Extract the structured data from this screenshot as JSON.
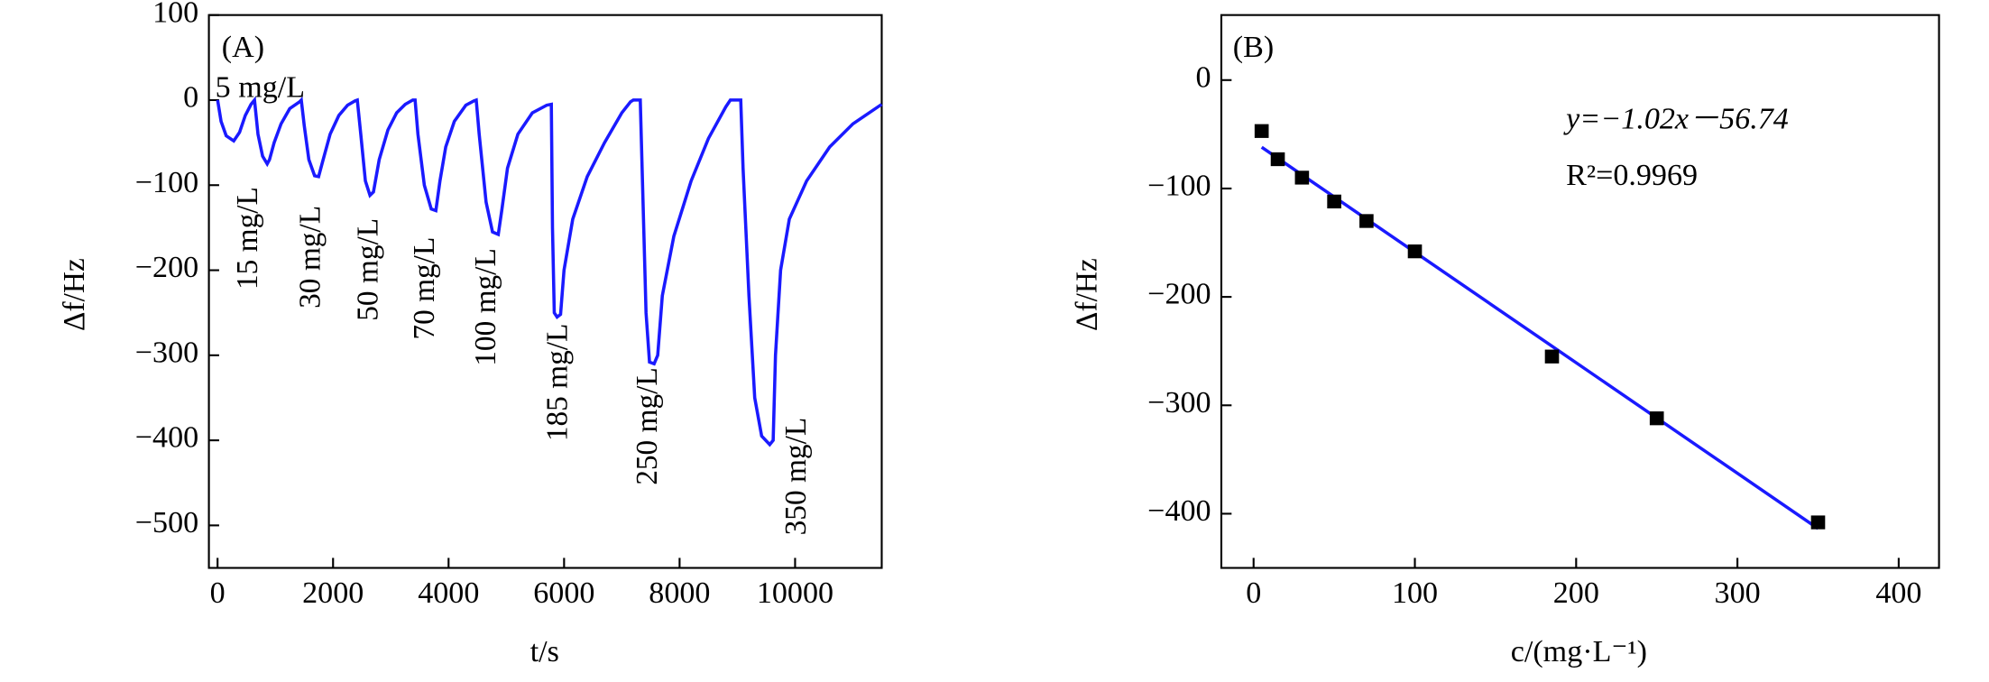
{
  "chart_data": [
    {
      "type": "line",
      "panel": "(A)",
      "xlabel": "t/s",
      "ylabel": "Δf/Hz",
      "xlim": [
        -150,
        11500
      ],
      "ylim": [
        -550,
        100
      ],
      "xticks": [
        0,
        2000,
        4000,
        6000,
        8000,
        10000
      ],
      "yticks": [
        100,
        0,
        {
          "value": -100,
          "label": "−100"
        },
        {
          "value": -200,
          "label": "−200"
        },
        {
          "value": -300,
          "label": "−300"
        },
        {
          "value": -400,
          "label": "−400"
        },
        {
          "value": -500,
          "label": "−500"
        }
      ],
      "annotations": [
        "5 mg/L",
        "15 mg/L",
        "30 mg/L",
        "50 mg/L",
        "70 mg/L",
        "100 mg/L",
        "185 mg/L",
        "250 mg/L",
        "350 mg/L"
      ],
      "x": [
        0,
        60,
        150,
        280,
        380,
        480,
        580,
        640,
        700,
        780,
        860,
        900,
        980,
        1100,
        1250,
        1420,
        1450,
        1500,
        1580,
        1680,
        1750,
        1820,
        1950,
        2100,
        2250,
        2380,
        2420,
        2480,
        2560,
        2640,
        2700,
        2800,
        2950,
        3100,
        3250,
        3380,
        3420,
        3470,
        3580,
        3700,
        3780,
        3850,
        3950,
        4100,
        4300,
        4440,
        4480,
        4530,
        4650,
        4760,
        4860,
        4920,
        5020,
        5200,
        5450,
        5700,
        5780,
        5800,
        5830,
        5880,
        5940,
        6000,
        6150,
        6400,
        6700,
        7000,
        7150,
        7200,
        7320,
        7360,
        7420,
        7480,
        7560,
        7620,
        7700,
        7900,
        8200,
        8500,
        8800,
        8880,
        9060,
        9100,
        9200,
        9300,
        9420,
        9560,
        9620,
        9660,
        9750,
        9900,
        10200,
        10600,
        11000,
        11500
      ],
      "series": [
        {
          "color": "#1a1aff",
          "values": [
            0,
            -25,
            -42,
            -48,
            -38,
            -18,
            -5,
            0,
            -40,
            -66,
            -75,
            -70,
            -50,
            -28,
            -10,
            -2,
            0,
            -30,
            -70,
            -89,
            -90,
            -72,
            -40,
            -18,
            -6,
            -1,
            0,
            -40,
            -95,
            -112,
            -108,
            -70,
            -35,
            -15,
            -5,
            0,
            0,
            -40,
            -100,
            -128,
            -130,
            -95,
            -55,
            -25,
            -6,
            -1,
            0,
            -40,
            -120,
            -155,
            -158,
            -130,
            -80,
            -40,
            -15,
            -6,
            -5,
            -150,
            -250,
            -255,
            -252,
            -200,
            -140,
            -90,
            -50,
            -15,
            -2,
            0,
            0,
            -100,
            -250,
            -308,
            -310,
            -300,
            -230,
            -160,
            -95,
            -45,
            -8,
            0,
            0,
            -80,
            -230,
            -350,
            -395,
            -405,
            -400,
            -300,
            -200,
            -140,
            -95,
            -55,
            -28,
            -5
          ]
        }
      ]
    },
    {
      "type": "scatter",
      "panel": "(B)",
      "xlabel": "c/(mg·L⁻¹)",
      "ylabel": "Δf/Hz",
      "equation": "y=−1.02x－56.74",
      "r2": "R²=0.9969",
      "xlim": [
        -20,
        425
      ],
      "ylim": [
        -450,
        60
      ],
      "xticks": [
        0,
        100,
        200,
        300,
        400
      ],
      "yticks": [
        0,
        {
          "value": -100,
          "label": "−100"
        },
        {
          "value": -200,
          "label": "−200"
        },
        {
          "value": -300,
          "label": "−300"
        },
        {
          "value": -400,
          "label": "−400"
        }
      ],
      "x": [
        5,
        15,
        30,
        50,
        70,
        100,
        185,
        250,
        350
      ],
      "values": [
        -47,
        -73,
        -90,
        -112,
        -130,
        -158,
        -255,
        -312,
        -408
      ],
      "color": "#000000",
      "fit": {
        "color": "#1a1aff",
        "x": [
          5,
          350
        ],
        "values": [
          -61.84,
          -413.74
        ]
      }
    }
  ]
}
